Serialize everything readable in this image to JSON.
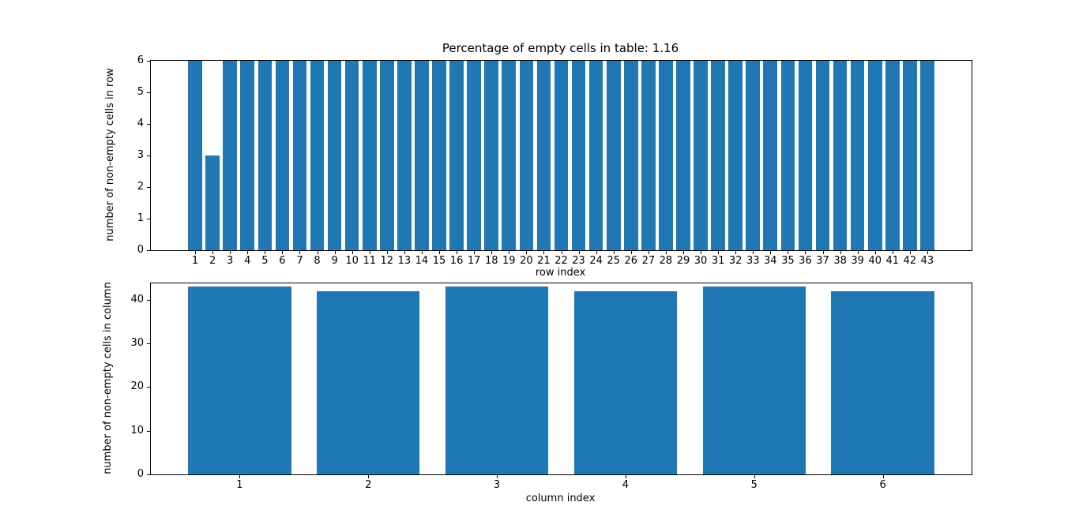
{
  "figure": {
    "background": "#ffffff",
    "bar_color": "#1f77b4",
    "axis_color": "#000000"
  },
  "chart_data": [
    {
      "type": "bar",
      "title": "Percentage of empty cells in table: 1.16",
      "xlabel": "row index",
      "ylabel": "number of non-empty cells in row",
      "categories": [
        1,
        2,
        3,
        4,
        5,
        6,
        7,
        8,
        9,
        10,
        11,
        12,
        13,
        14,
        15,
        16,
        17,
        18,
        19,
        20,
        21,
        22,
        23,
        24,
        25,
        26,
        27,
        28,
        29,
        30,
        31,
        32,
        33,
        34,
        35,
        36,
        37,
        38,
        39,
        40,
        41,
        42,
        43
      ],
      "values": [
        6,
        3,
        6,
        6,
        6,
        6,
        6,
        6,
        6,
        6,
        6,
        6,
        6,
        6,
        6,
        6,
        6,
        6,
        6,
        6,
        6,
        6,
        6,
        6,
        6,
        6,
        6,
        6,
        6,
        6,
        6,
        6,
        6,
        6,
        6,
        6,
        6,
        6,
        6,
        6,
        6,
        6,
        6
      ],
      "xlim": [
        -1.54,
        45.54
      ],
      "ylim": [
        0,
        6
      ],
      "yticks": [
        0,
        1,
        2,
        3,
        4,
        5,
        6
      ],
      "bar_width": 0.8,
      "grid": false,
      "legend": null
    },
    {
      "type": "bar",
      "title": "",
      "xlabel": "column index",
      "ylabel": "number of non-empty cells in column",
      "categories": [
        1,
        2,
        3,
        4,
        5,
        6
      ],
      "values": [
        43,
        42,
        43,
        42,
        43,
        42
      ],
      "xlim": [
        0.31,
        6.69
      ],
      "ylim": [
        0,
        43.8
      ],
      "yticks": [
        0,
        10,
        20,
        30,
        40
      ],
      "bar_width": 0.8,
      "grid": false,
      "legend": null
    }
  ]
}
